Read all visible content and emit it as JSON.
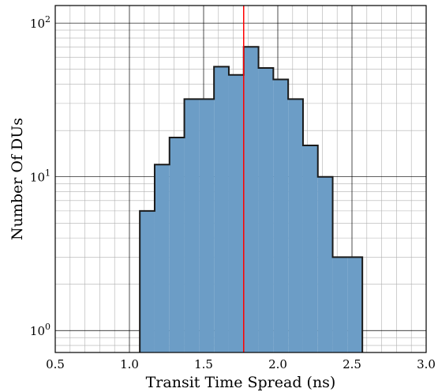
{
  "chart_data": {
    "type": "bar",
    "title": "",
    "xlabel": "Transit Time Spread (ns)",
    "ylabel": "Number Of DUs",
    "xlim": [
      0.5,
      3.0
    ],
    "ylim": [
      0.72,
      130
    ],
    "y_scale": "log",
    "grid": true,
    "x_ticks": [
      "0.5",
      "1.0",
      "1.5",
      "2.0",
      "2.5",
      "3.0"
    ],
    "y_ticks": [
      {
        "value": 1,
        "base": "10",
        "exp": "0"
      },
      {
        "value": 10,
        "base": "10",
        "exp": "1"
      },
      {
        "value": 100,
        "base": "10",
        "exp": "2"
      }
    ],
    "bin_edges": [
      1.07,
      1.17,
      1.27,
      1.37,
      1.47,
      1.57,
      1.67,
      1.77,
      1.87,
      1.97,
      2.07,
      2.17,
      2.27,
      2.37,
      2.47,
      2.57
    ],
    "bin_counts": [
      6,
      12,
      18,
      32,
      32,
      52,
      46,
      70,
      51,
      43,
      32,
      16,
      10,
      3,
      3
    ],
    "reference_line_x": 1.77,
    "colors": {
      "bar_fill": "#6c9dc6",
      "bar_edge": "#1a1a1a",
      "reference_line": "#ff0000",
      "major_grid": "#000000",
      "minor_grid": "#b0b0b0"
    }
  }
}
